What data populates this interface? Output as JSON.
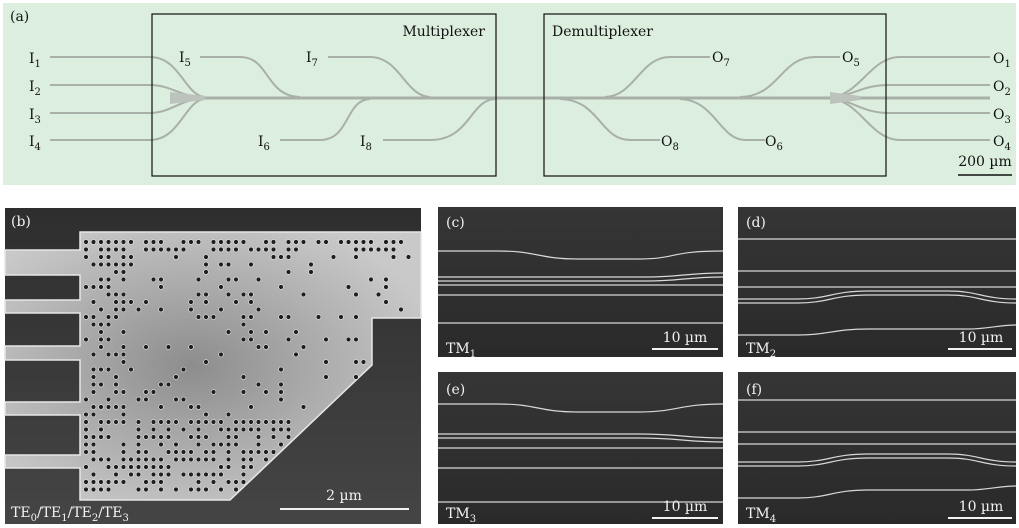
{
  "panel_a": {
    "label": "(a)",
    "mux_title": "Multiplexer",
    "demux_title": "Demultiplexer",
    "inputs": [
      {
        "base": "I",
        "sub": "1"
      },
      {
        "base": "I",
        "sub": "2"
      },
      {
        "base": "I",
        "sub": "3"
      },
      {
        "base": "I",
        "sub": "4"
      },
      {
        "base": "I",
        "sub": "5"
      },
      {
        "base": "I",
        "sub": "6"
      },
      {
        "base": "I",
        "sub": "7"
      },
      {
        "base": "I",
        "sub": "8"
      }
    ],
    "outputs": [
      {
        "base": "O",
        "sub": "1"
      },
      {
        "base": "O",
        "sub": "2"
      },
      {
        "base": "O",
        "sub": "3"
      },
      {
        "base": "O",
        "sub": "4"
      },
      {
        "base": "O",
        "sub": "5"
      },
      {
        "base": "O",
        "sub": "6"
      },
      {
        "base": "O",
        "sub": "7"
      },
      {
        "base": "O",
        "sub": "8"
      }
    ],
    "scale_bar": "200 µm"
  },
  "panel_b": {
    "label": "(b)",
    "scale_bar": "2 µm",
    "caption": {
      "parts": [
        {
          "base": "TE",
          "sub": "0"
        },
        {
          "sep": "/"
        },
        {
          "base": "TE",
          "sub": "1"
        },
        {
          "sep": "/"
        },
        {
          "base": "TE",
          "sub": "2"
        },
        {
          "sep": "/"
        },
        {
          "base": "TE",
          "sub": "3"
        }
      ]
    }
  },
  "panels_small": [
    {
      "label": "(c)",
      "mode": {
        "base": "TM",
        "sub": "1"
      },
      "scale_bar": "10 µm"
    },
    {
      "label": "(d)",
      "mode": {
        "base": "TM",
        "sub": "2"
      },
      "scale_bar": "10 µm"
    },
    {
      "label": "(e)",
      "mode": {
        "base": "TM",
        "sub": "3"
      },
      "scale_bar": "10 µm"
    },
    {
      "label": "(f)",
      "mode": {
        "base": "TM",
        "sub": "4"
      },
      "scale_bar": "10 µm"
    }
  ],
  "colors": {
    "optical_bg": "#dceedd",
    "sem_dark": "#3a3a3a",
    "sem_device": "#c8c8c8",
    "waveguide": "#a8b0a8"
  }
}
